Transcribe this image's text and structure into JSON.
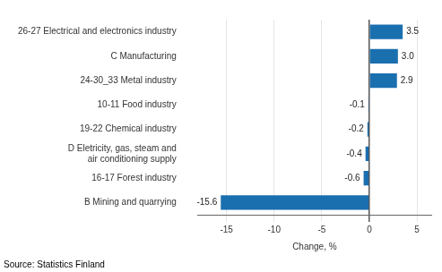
{
  "chart_data": {
    "type": "bar",
    "orientation": "horizontal",
    "categories": [
      "B Mining and quarrying",
      "16-17 Forest industry",
      "D Eletricity, gas, steam and\nair conditioning supply",
      "19-22 Chemical industry",
      "10-11 Food industry",
      "24-30_33 Metal industry",
      "C Manufacturing",
      "26-27 Electrical and electronics industry"
    ],
    "values": [
      -15.6,
      -0.6,
      -0.4,
      -0.2,
      -0.1,
      2.9,
      3.0,
      3.5
    ],
    "value_labels": [
      "-15.6",
      "-0.6",
      "-0.4",
      "-0.2",
      "-0.1",
      "2.9",
      "3.0",
      "3.5"
    ],
    "data_labels": true,
    "color": "#1a6faf",
    "xlabel": "Change, %",
    "xlim": [
      -18,
      6.5
    ],
    "xticks": [
      -15,
      -10,
      -5,
      0,
      5
    ],
    "grid": true,
    "annotations": [
      "Source: Statistics Finland"
    ]
  }
}
